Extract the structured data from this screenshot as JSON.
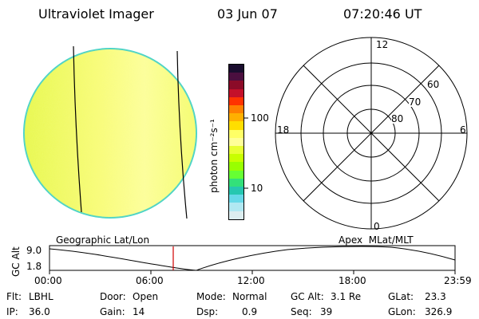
{
  "header": {
    "title": "Ultraviolet Imager",
    "date": "03 Jun 07",
    "time": "07:20:46 UT"
  },
  "colorbar": {
    "unit_label": "photon cm⁻²s⁻¹",
    "ticks": [
      "100",
      "10"
    ],
    "colors": [
      "#1a0d2e",
      "#4b0f3f",
      "#8b0b28",
      "#c4102a",
      "#ff3300",
      "#ff8000",
      "#ffb000",
      "#ffde00",
      "#ffff66",
      "#ffff99",
      "#e8ff33",
      "#c8ff00",
      "#99ff00",
      "#66ff33",
      "#33e07a",
      "#26c7b0",
      "#66d9e8",
      "#b0e8f2",
      "#dcedef"
    ]
  },
  "polar": {
    "labels": {
      "top": "12",
      "left": "18",
      "right": "6",
      "bottom": "0"
    },
    "rings": [
      "60",
      "70",
      "80"
    ]
  },
  "orbit": {
    "left_label": "Geographic Lat/Lon",
    "right_label": "Apex  MLat/MLT",
    "axis_label": "GC Alt",
    "y_ticks": [
      "9.0",
      "1.8"
    ],
    "x_ticks": [
      "00:00",
      "06:00",
      "12:00",
      "18:00",
      "23:59"
    ]
  },
  "info": {
    "row1": [
      {
        "label": "Flt:",
        "value": "LBHL"
      },
      {
        "label": "Door:",
        "value": "Open"
      },
      {
        "label": "Mode:",
        "value": "Normal"
      },
      {
        "label": "GC Alt:",
        "value": "3.1 Re"
      },
      {
        "label": "GLat:",
        "value": "23.3"
      }
    ],
    "row2": [
      {
        "label": "IP:",
        "value": "36.0"
      },
      {
        "label": "Gain:",
        "value": "14"
      },
      {
        "label": "Dsp:",
        "value": "0.9"
      },
      {
        "label": "Seq:",
        "value": "39"
      },
      {
        "label": "GLon:",
        "value": "326.9"
      }
    ]
  },
  "colors": {
    "disk_fill": "#f2fb5a",
    "disk_fill_light": "#ffff9a",
    "disk_edge": "#46d2c8",
    "current_time_marker": "#d00000"
  }
}
